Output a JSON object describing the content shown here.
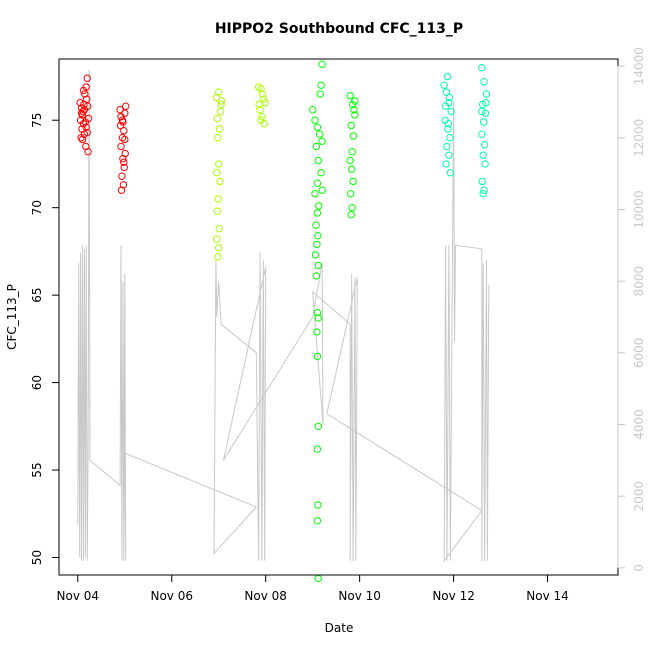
{
  "chart_data": {
    "type": "scatter",
    "title": "HIPPO2 Southbound CFC_113_P",
    "xlabel": "Date",
    "ylabel": "CFC_113_P",
    "x_ticks": [
      "Nov 04",
      "Nov 06",
      "Nov 08",
      "Nov 10",
      "Nov 12",
      "Nov 14"
    ],
    "x_tick_days": [
      0,
      2,
      4,
      6,
      8,
      10
    ],
    "y_left_ticks": [
      50,
      55,
      60,
      65,
      70,
      75
    ],
    "y_right_ticks": [
      0,
      2000,
      4000,
      6000,
      8000,
      10000,
      12000,
      14000
    ],
    "xlim_days": [
      -0.4,
      11.5
    ],
    "ylim_left": [
      49,
      78.5
    ],
    "ylim_right": [
      -200,
      14200
    ],
    "colors": {
      "altitude_line": "#c8c8c8",
      "right_axis": "#c8c8c8",
      "flight1": "#ff0000",
      "flight2": "#aaff00",
      "flight3": "#00ff00",
      "flight4": "#00ffaa"
    },
    "series": [
      {
        "color": "#ff0000",
        "points": [
          [
            0.1,
            75.3
          ],
          [
            0.12,
            74.8
          ],
          [
            0.05,
            76.0
          ],
          [
            0.08,
            75.7
          ],
          [
            0.15,
            76.5
          ],
          [
            0.18,
            76.9
          ],
          [
            0.2,
            77.4
          ],
          [
            0.14,
            74.2
          ],
          [
            0.1,
            73.9
          ],
          [
            0.22,
            73.2
          ],
          [
            0.17,
            73.5
          ],
          [
            0.06,
            75.0
          ],
          [
            0.09,
            74.5
          ],
          [
            0.13,
            75.9
          ],
          [
            0.19,
            76.2
          ],
          [
            0.11,
            75.5
          ],
          [
            0.16,
            74.9
          ],
          [
            0.07,
            74.0
          ],
          [
            0.21,
            75.8
          ],
          [
            0.23,
            75.1
          ],
          [
            0.12,
            76.7
          ],
          [
            0.18,
            74.6
          ],
          [
            0.08,
            75.4
          ],
          [
            0.14,
            75.6
          ],
          [
            0.2,
            74.3
          ],
          [
            0.9,
            75.6
          ],
          [
            0.95,
            75.0
          ],
          [
            0.98,
            74.4
          ],
          [
            1.0,
            73.9
          ],
          [
            0.92,
            73.5
          ],
          [
            0.96,
            72.8
          ],
          [
            0.99,
            72.3
          ],
          [
            0.94,
            71.8
          ],
          [
            0.97,
            71.3
          ],
          [
            0.93,
            71.0
          ],
          [
            1.02,
            75.8
          ],
          [
            0.91,
            74.7
          ],
          [
            0.95,
            74.0
          ],
          [
            1.01,
            73.1
          ],
          [
            0.98,
            72.6
          ],
          [
            0.92,
            75.2
          ],
          [
            0.96,
            74.9
          ],
          [
            1.0,
            75.4
          ]
        ]
      },
      {
        "color": "#aaff00",
        "points": [
          [
            2.95,
            76.3
          ],
          [
            3.0,
            76.6
          ],
          [
            3.05,
            75.9
          ],
          [
            2.97,
            75.1
          ],
          [
            3.02,
            74.5
          ],
          [
            2.98,
            74.0
          ],
          [
            3.0,
            72.5
          ],
          [
            2.96,
            72.0
          ],
          [
            3.03,
            71.5
          ],
          [
            2.99,
            70.5
          ],
          [
            2.97,
            69.8
          ],
          [
            3.01,
            68.8
          ],
          [
            2.96,
            68.2
          ],
          [
            3.0,
            67.7
          ],
          [
            2.98,
            67.2
          ],
          [
            3.04,
            75.5
          ],
          [
            3.06,
            76.1
          ],
          [
            3.85,
            76.9
          ],
          [
            3.9,
            76.8
          ],
          [
            3.95,
            76.2
          ],
          [
            3.88,
            75.6
          ],
          [
            3.92,
            75.2
          ],
          [
            3.97,
            74.8
          ],
          [
            3.86,
            75.9
          ],
          [
            3.93,
            76.5
          ],
          [
            3.99,
            76.0
          ],
          [
            3.9,
            75.0
          ]
        ]
      },
      {
        "color": "#00ff00",
        "points": [
          [
            5.0,
            75.6
          ],
          [
            5.05,
            75.0
          ],
          [
            5.1,
            74.6
          ],
          [
            5.15,
            74.2
          ],
          [
            5.08,
            73.5
          ],
          [
            5.12,
            72.7
          ],
          [
            5.18,
            72.0
          ],
          [
            5.1,
            71.4
          ],
          [
            5.05,
            70.8
          ],
          [
            5.13,
            70.1
          ],
          [
            5.1,
            69.7
          ],
          [
            5.07,
            69.0
          ],
          [
            5.11,
            68.4
          ],
          [
            5.09,
            67.9
          ],
          [
            5.06,
            67.3
          ],
          [
            5.12,
            66.7
          ],
          [
            5.08,
            66.1
          ],
          [
            5.1,
            64.0
          ],
          [
            5.12,
            63.7
          ],
          [
            5.09,
            62.9
          ],
          [
            5.1,
            61.5
          ],
          [
            5.12,
            57.5
          ],
          [
            5.1,
            56.2
          ],
          [
            5.11,
            53.0
          ],
          [
            5.1,
            52.1
          ],
          [
            5.12,
            48.8
          ],
          [
            5.2,
            78.2
          ],
          [
            5.18,
            77.0
          ],
          [
            5.16,
            76.5
          ],
          [
            5.2,
            73.8
          ],
          [
            5.2,
            71.0
          ],
          [
            5.8,
            76.4
          ],
          [
            5.85,
            75.9
          ],
          [
            5.9,
            75.3
          ],
          [
            5.82,
            74.7
          ],
          [
            5.87,
            74.1
          ],
          [
            5.84,
            73.2
          ],
          [
            5.8,
            72.7
          ],
          [
            5.83,
            72.2
          ],
          [
            5.86,
            71.5
          ],
          [
            5.81,
            70.8
          ],
          [
            5.84,
            70.0
          ],
          [
            5.82,
            69.6
          ],
          [
            5.88,
            75.6
          ],
          [
            5.9,
            76.1
          ]
        ]
      },
      {
        "color": "#00ffaa",
        "points": [
          [
            7.8,
            77.0
          ],
          [
            7.85,
            76.6
          ],
          [
            7.9,
            76.0
          ],
          [
            7.95,
            75.5
          ],
          [
            7.82,
            75.0
          ],
          [
            7.88,
            74.5
          ],
          [
            7.92,
            74.0
          ],
          [
            7.86,
            73.5
          ],
          [
            7.9,
            73.0
          ],
          [
            7.84,
            72.5
          ],
          [
            7.93,
            72.0
          ],
          [
            7.87,
            77.5
          ],
          [
            7.91,
            76.3
          ],
          [
            7.83,
            75.8
          ],
          [
            7.89,
            74.8
          ],
          [
            8.6,
            78.0
          ],
          [
            8.65,
            77.2
          ],
          [
            8.7,
            76.5
          ],
          [
            8.62,
            75.9
          ],
          [
            8.68,
            75.4
          ],
          [
            8.64,
            74.9
          ],
          [
            8.6,
            74.2
          ],
          [
            8.66,
            73.6
          ],
          [
            8.63,
            73.0
          ],
          [
            8.67,
            72.5
          ],
          [
            8.61,
            71.5
          ],
          [
            8.65,
            71.0
          ],
          [
            8.63,
            70.8
          ],
          [
            8.69,
            76.0
          ],
          [
            8.6,
            75.5
          ]
        ]
      }
    ],
    "altitude_line": {
      "points": [
        [
          0.0,
          1200
        ],
        [
          0.02,
          8500
        ],
        [
          0.04,
          300
        ],
        [
          0.06,
          8800
        ],
        [
          0.08,
          200
        ],
        [
          0.1,
          9000
        ],
        [
          0.12,
          200
        ],
        [
          0.14,
          8900
        ],
        [
          0.16,
          300
        ],
        [
          0.18,
          9000
        ],
        [
          0.2,
          200
        ],
        [
          0.22,
          3200
        ],
        [
          0.24,
          13900
        ],
        [
          0.26,
          3000
        ],
        [
          0.9,
          2300
        ],
        [
          0.92,
          9000
        ],
        [
          0.94,
          200
        ],
        [
          0.96,
          8000
        ],
        [
          0.98,
          200
        ],
        [
          1.0,
          8200
        ],
        [
          1.02,
          200
        ],
        [
          1.0,
          3200
        ],
        [
          3.8,
          1700
        ],
        [
          2.9,
          400
        ],
        [
          2.94,
          8600
        ],
        [
          2.96,
          7000
        ],
        [
          3.0,
          8000
        ],
        [
          3.05,
          6800
        ],
        [
          3.8,
          6000
        ],
        [
          3.85,
          200
        ],
        [
          3.88,
          8800
        ],
        [
          3.92,
          200
        ],
        [
          3.95,
          8600
        ],
        [
          3.98,
          200
        ],
        [
          4.0,
          8400
        ],
        [
          3.1,
          3000
        ],
        [
          5.0,
          7000
        ],
        [
          5.2,
          8500
        ],
        [
          5.22,
          4000
        ],
        [
          5.0,
          7700
        ],
        [
          5.8,
          6800
        ],
        [
          5.8,
          200
        ],
        [
          5.83,
          8200
        ],
        [
          5.86,
          200
        ],
        [
          5.9,
          8100
        ],
        [
          5.92,
          200
        ],
        [
          5.95,
          8100
        ],
        [
          5.3,
          4300
        ],
        [
          8.6,
          1600
        ],
        [
          7.8,
          200
        ],
        [
          7.83,
          9000
        ],
        [
          7.86,
          200
        ],
        [
          7.9,
          9000
        ],
        [
          7.93,
          200
        ],
        [
          8.0,
          13000
        ],
        [
          8.02,
          6300
        ],
        [
          8.04,
          9000
        ],
        [
          8.6,
          8900
        ],
        [
          8.6,
          200
        ],
        [
          8.63,
          8500
        ],
        [
          8.66,
          200
        ],
        [
          8.7,
          8600
        ],
        [
          8.72,
          200
        ],
        [
          8.75,
          7900
        ]
      ]
    }
  }
}
